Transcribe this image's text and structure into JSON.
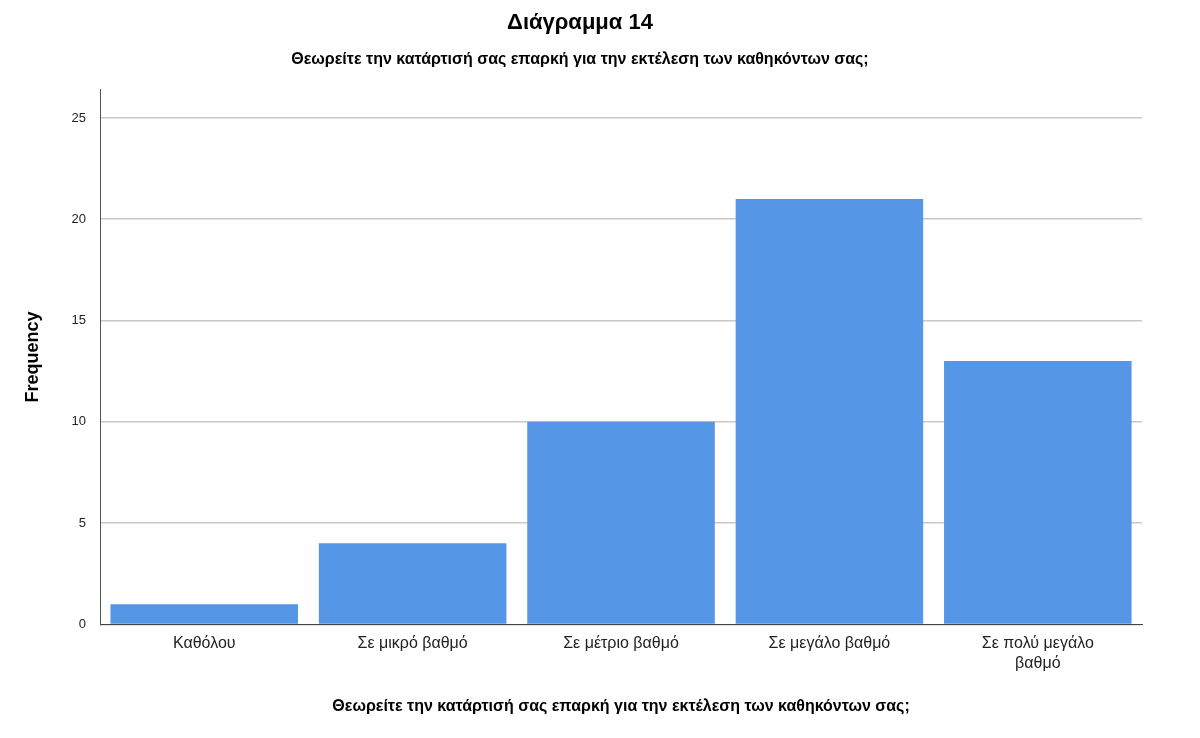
{
  "chart_data": {
    "type": "bar",
    "title": "Διάγραμμα 14",
    "subtitle": "Θεωρείτε την κατάρτισή σας επαρκή για την εκτέλεση των καθηκόντων σας;",
    "xlabel": "Θεωρείτε την κατάρτισή σας επαρκή για την εκτέλεση των καθηκόντων σας;",
    "ylabel": "Frequency",
    "categories": [
      "Καθόλου",
      "Σε μικρό βαθμό",
      "Σε μέτριο βαθμό",
      "Σε μεγάλο βαθμό",
      "Σε πολύ μεγάλο βαθμό"
    ],
    "values": [
      1,
      4,
      10,
      21,
      13
    ],
    "color": "#5596e6",
    "ylim": [
      0,
      26.4
    ],
    "yticks": [
      0,
      5,
      10,
      15,
      20,
      25
    ],
    "grid": "y"
  }
}
